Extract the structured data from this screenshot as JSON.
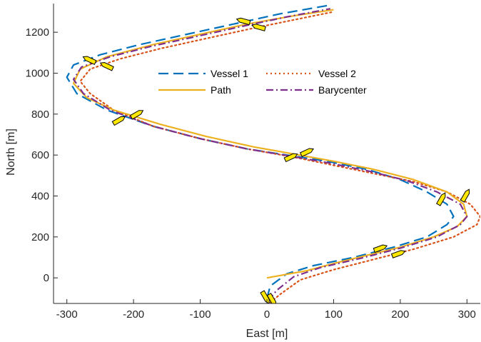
{
  "chart_data": {
    "type": "line",
    "title": "",
    "xlabel": "East [m]",
    "ylabel": "North [m]",
    "xlim": [
      -320,
      320
    ],
    "ylim": [
      -125,
      1340
    ],
    "x_ticks": [
      -300,
      -200,
      -100,
      0,
      100,
      200,
      300
    ],
    "x_tick_labels": [
      "-300",
      "-200",
      "-100",
      "0",
      "100",
      "200",
      "300"
    ],
    "y_ticks": [
      0,
      200,
      400,
      600,
      800,
      1000,
      1200
    ],
    "y_tick_labels": [
      "0",
      "200",
      "400",
      "600",
      "800",
      "1000",
      "1200"
    ],
    "grid": false,
    "legend_position": "top-center",
    "series": [
      {
        "name": "Vessel 1",
        "color": "#0072bd",
        "style": "dashed",
        "x": [
          0,
          5,
          30,
          70,
          130,
          190,
          240,
          270,
          280,
          270,
          240,
          200,
          150,
          90,
          30,
          -30,
          -100,
          -170,
          -240,
          -285,
          -300,
          -290,
          -250,
          -190,
          -120,
          -50,
          20,
          90
        ],
        "y": [
          -100,
          -40,
          20,
          60,
          100,
          150,
          200,
          260,
          300,
          360,
          420,
          480,
          530,
          570,
          600,
          630,
          680,
          740,
          820,
          900,
          980,
          1040,
          1090,
          1140,
          1190,
          1240,
          1290,
          1330
        ]
      },
      {
        "name": "Vessel 2",
        "color": "#d95319",
        "style": "dotted",
        "x": [
          5,
          20,
          50,
          100,
          160,
          220,
          280,
          315,
          320,
          305,
          270,
          220,
          160,
          100,
          40,
          -30,
          -100,
          -170,
          -230,
          -265,
          -280,
          -265,
          -220,
          -160,
          -90,
          -20,
          40,
          100
        ],
        "y": [
          -120,
          -80,
          -10,
          40,
          90,
          140,
          200,
          260,
          300,
          360,
          420,
          470,
          510,
          550,
          590,
          630,
          680,
          740,
          820,
          900,
          960,
          1020,
          1070,
          1120,
          1170,
          1220,
          1260,
          1300
        ]
      },
      {
        "name": "Path",
        "color": "#edb120",
        "style": "solid",
        "x": [
          0,
          60,
          100,
          150,
          200,
          250,
          285,
          300,
          295,
          270,
          220,
          160,
          100,
          40,
          -20,
          -90,
          -160,
          -230,
          -270,
          -290,
          -280,
          -240,
          -170,
          -100,
          -30,
          40,
          100
        ],
        "y": [
          0,
          35,
          70,
          110,
          150,
          200,
          250,
          300,
          360,
          420,
          480,
          530,
          570,
          605,
          640,
          690,
          750,
          820,
          880,
          950,
          1020,
          1080,
          1140,
          1190,
          1240,
          1280,
          1310
        ]
      },
      {
        "name": "Barycenter",
        "color": "#7e2f8e",
        "style": "dashdot",
        "x": [
          2,
          15,
          40,
          80,
          140,
          200,
          255,
          290,
          300,
          290,
          255,
          210,
          155,
          95,
          35,
          -30,
          -100,
          -170,
          -235,
          -275,
          -290,
          -278,
          -235,
          -175,
          -105,
          -35,
          30,
          95
        ],
        "y": [
          -110,
          -60,
          5,
          50,
          95,
          145,
          200,
          260,
          300,
          360,
          420,
          475,
          520,
          560,
          595,
          630,
          680,
          740,
          820,
          900,
          970,
          1030,
          1080,
          1130,
          1180,
          1230,
          1275,
          1315
        ]
      }
    ],
    "markers": [
      {
        "name": "vessel-glyph",
        "x": -2,
        "y": -95,
        "heading": -60
      },
      {
        "name": "vessel-glyph",
        "x": 8,
        "y": -108,
        "heading": -60
      },
      {
        "name": "vessel-glyph",
        "x": 170,
        "y": 145,
        "heading": 20
      },
      {
        "name": "vessel-glyph",
        "x": 197,
        "y": 118,
        "heading": 20
      },
      {
        "name": "vessel-glyph",
        "x": 262,
        "y": 385,
        "heading": 60
      },
      {
        "name": "vessel-glyph",
        "x": 298,
        "y": 402,
        "heading": 60
      },
      {
        "name": "vessel-glyph",
        "x": 36,
        "y": 590,
        "heading": 25
      },
      {
        "name": "vessel-glyph",
        "x": 60,
        "y": 615,
        "heading": 25
      },
      {
        "name": "vessel-glyph",
        "x": -222,
        "y": 770,
        "heading": 30
      },
      {
        "name": "vessel-glyph",
        "x": -195,
        "y": 800,
        "heading": 30
      },
      {
        "name": "vessel-glyph",
        "x": -266,
        "y": 1065,
        "heading": 155
      },
      {
        "name": "vessel-glyph",
        "x": -240,
        "y": 1035,
        "heading": 155
      },
      {
        "name": "vessel-glyph",
        "x": -35,
        "y": 1255,
        "heading": 165
      },
      {
        "name": "vessel-glyph",
        "x": -12,
        "y": 1225,
        "heading": 165
      }
    ]
  }
}
